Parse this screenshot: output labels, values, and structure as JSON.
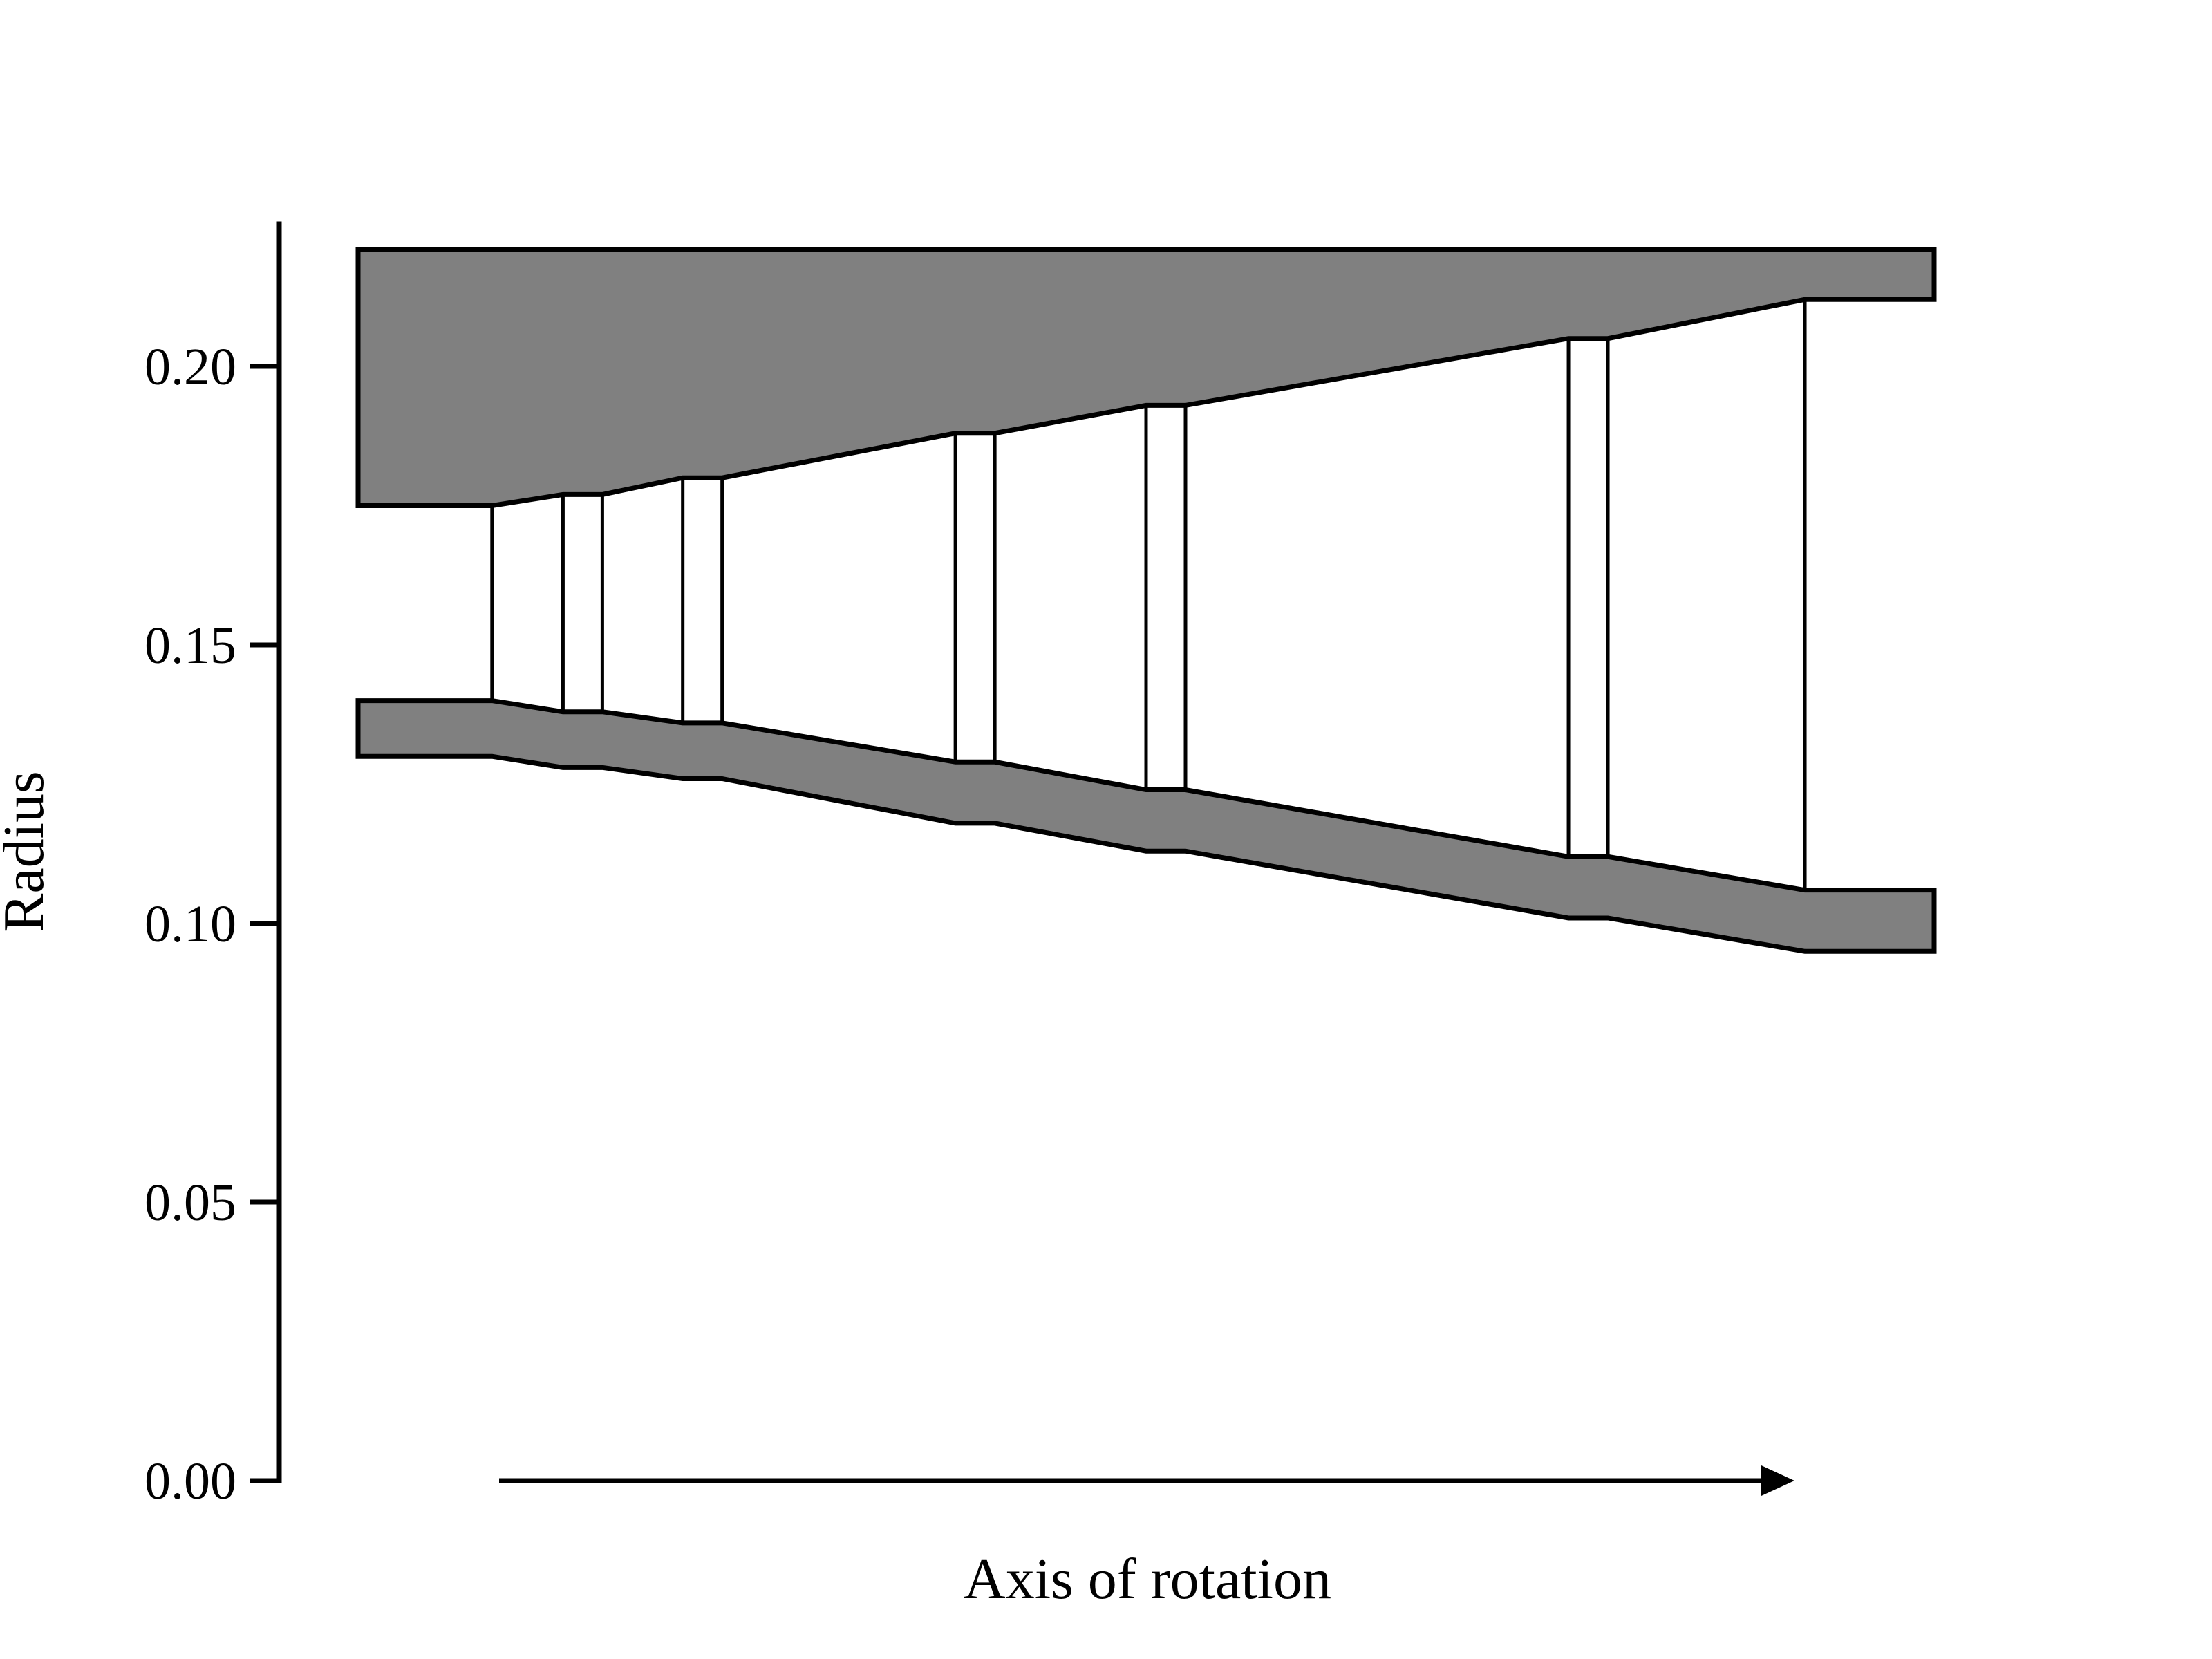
{
  "chart_data": {
    "type": "diagram",
    "xlabel": "Axis of rotation",
    "ylabel": "Radius",
    "ylim": [
      0.0,
      0.225
    ],
    "yticks": [
      "0.00",
      "0.05",
      "0.10",
      "0.15",
      "0.20"
    ],
    "ytick_values": [
      0.0,
      0.05,
      0.1,
      0.15,
      0.2
    ],
    "x_arrow": true,
    "colors": {
      "casing": "#808080",
      "outline": "#000000",
      "background": "#ffffff"
    },
    "outer_casing": {
      "top_radius": 0.221,
      "profile": [
        [
          0.0,
          0.175
        ],
        [
          0.085,
          0.175
        ],
        [
          0.13,
          0.177
        ],
        [
          0.155,
          0.177
        ],
        [
          0.206,
          0.18
        ],
        [
          0.231,
          0.18
        ],
        [
          0.379,
          0.188
        ],
        [
          0.404,
          0.188
        ],
        [
          0.5,
          0.193
        ],
        [
          0.525,
          0.193
        ],
        [
          0.768,
          0.205
        ],
        [
          0.793,
          0.205
        ],
        [
          0.918,
          0.212
        ],
        [
          1.0,
          0.212
        ]
      ]
    },
    "inner_hub": {
      "profile_top": [
        [
          0.0,
          0.14
        ],
        [
          0.085,
          0.14
        ],
        [
          0.13,
          0.138
        ],
        [
          0.155,
          0.138
        ],
        [
          0.206,
          0.136
        ],
        [
          0.231,
          0.136
        ],
        [
          0.379,
          0.129
        ],
        [
          0.404,
          0.129
        ],
        [
          0.5,
          0.124
        ],
        [
          0.525,
          0.124
        ],
        [
          0.768,
          0.112
        ],
        [
          0.793,
          0.112
        ],
        [
          0.918,
          0.106
        ],
        [
          1.0,
          0.106
        ]
      ],
      "profile_bottom": [
        [
          0.0,
          0.13
        ],
        [
          0.085,
          0.13
        ],
        [
          0.13,
          0.128
        ],
        [
          0.155,
          0.128
        ],
        [
          0.206,
          0.126
        ],
        [
          0.231,
          0.126
        ],
        [
          0.379,
          0.118
        ],
        [
          0.404,
          0.118
        ],
        [
          0.5,
          0.113
        ],
        [
          0.525,
          0.113
        ],
        [
          0.768,
          0.101
        ],
        [
          0.793,
          0.101
        ],
        [
          0.918,
          0.095
        ],
        [
          1.0,
          0.095
        ]
      ]
    },
    "stations": [
      0.085,
      0.13,
      0.155,
      0.206,
      0.231,
      0.379,
      0.404,
      0.5,
      0.525,
      0.768,
      0.793,
      0.918
    ]
  }
}
